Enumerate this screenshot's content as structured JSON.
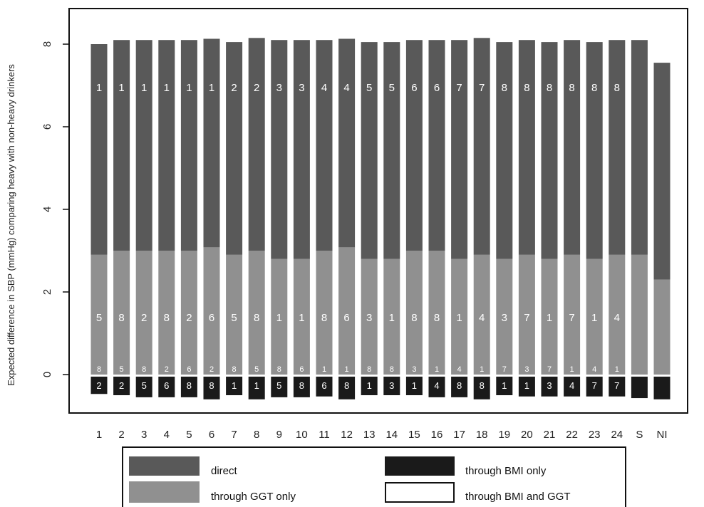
{
  "chart_data": {
    "type": "bar",
    "stacked": true,
    "ylabel": "Expected difference in SBP (mmHg) comparing heavy with non-heavy drinkers",
    "yticks": [
      0,
      2,
      4,
      6,
      8
    ],
    "ylim": [
      -0.95,
      9.1
    ],
    "categories": [
      "1",
      "2",
      "3",
      "4",
      "5",
      "6",
      "7",
      "8",
      "9",
      "10",
      "11",
      "12",
      "13",
      "14",
      "15",
      "16",
      "17",
      "18",
      "19",
      "20",
      "21",
      "22",
      "23",
      "24",
      "S",
      "NI"
    ],
    "series": [
      {
        "name": "direct",
        "color": "#595959",
        "values": [
          5.1,
          5.1,
          5.1,
          5.1,
          5.1,
          5.05,
          5.15,
          5.15,
          5.3,
          5.3,
          5.1,
          5.05,
          5.25,
          5.25,
          5.1,
          5.1,
          5.3,
          5.25,
          5.25,
          5.2,
          5.25,
          5.2,
          5.25,
          5.2,
          5.2,
          5.25
        ]
      },
      {
        "name": "through GGT only",
        "color": "#909090",
        "values": [
          2.9,
          3.0,
          3.0,
          3.0,
          3.0,
          3.08,
          2.9,
          3.0,
          2.8,
          2.8,
          3.0,
          3.08,
          2.8,
          2.8,
          3.0,
          3.0,
          2.8,
          2.9,
          2.8,
          2.9,
          2.8,
          2.9,
          2.8,
          2.9,
          2.9,
          2.3
        ]
      },
      {
        "name": "through BMI only",
        "color": "#1a1a1a",
        "values": [
          -0.42,
          -0.45,
          -0.5,
          -0.5,
          -0.5,
          -0.55,
          -0.45,
          -0.55,
          -0.5,
          -0.5,
          -0.48,
          -0.55,
          -0.45,
          -0.45,
          -0.45,
          -0.5,
          -0.5,
          -0.55,
          -0.45,
          -0.48,
          -0.48,
          -0.48,
          -0.48,
          -0.48,
          -0.52,
          -0.55
        ]
      },
      {
        "name": "through BMI and GGT",
        "color": "#ffffff",
        "values": [
          -0.05,
          -0.05,
          -0.05,
          -0.05,
          -0.05,
          -0.05,
          -0.05,
          -0.05,
          -0.05,
          -0.05,
          -0.05,
          -0.05,
          -0.05,
          -0.05,
          -0.05,
          -0.05,
          -0.05,
          -0.05,
          -0.05,
          -0.05,
          -0.05,
          -0.05,
          -0.05,
          -0.05,
          -0.05,
          -0.05
        ]
      }
    ],
    "labels_direct": [
      "1",
      "1",
      "1",
      "1",
      "1",
      "1",
      "2",
      "2",
      "3",
      "3",
      "4",
      "4",
      "5",
      "5",
      "6",
      "6",
      "7",
      "7",
      "8",
      "8",
      "8",
      "8",
      "8",
      "8",
      "",
      ""
    ],
    "labels_ggt": [
      "5",
      "8",
      "2",
      "8",
      "2",
      "6",
      "5",
      "8",
      "1",
      "1",
      "8",
      "6",
      "3",
      "1",
      "8",
      "8",
      "1",
      "4",
      "3",
      "7",
      "1",
      "7",
      "1",
      "4",
      "",
      ""
    ],
    "labels_ggt_base": [
      "8",
      "5",
      "8",
      "2",
      "6",
      "2",
      "8",
      "5",
      "8",
      "6",
      "1",
      "1",
      "8",
      "8",
      "3",
      "1",
      "4",
      "1",
      "7",
      "3",
      "7",
      "1",
      "4",
      "1",
      "",
      ""
    ],
    "labels_bmi": [
      "2",
      "2",
      "5",
      "6",
      "8",
      "8",
      "1",
      "1",
      "5",
      "8",
      "6",
      "8",
      "1",
      "3",
      "1",
      "4",
      "8",
      "8",
      "1",
      "1",
      "3",
      "4",
      "7",
      "7",
      "",
      ""
    ],
    "legend": {
      "position": "bottom",
      "items": [
        {
          "label": "direct",
          "color": "#595959"
        },
        {
          "label": "through BMI only",
          "color": "#1a1a1a"
        },
        {
          "label": "through GGT only",
          "color": "#909090"
        },
        {
          "label": "through BMI and GGT",
          "color": "#ffffff"
        }
      ]
    }
  }
}
